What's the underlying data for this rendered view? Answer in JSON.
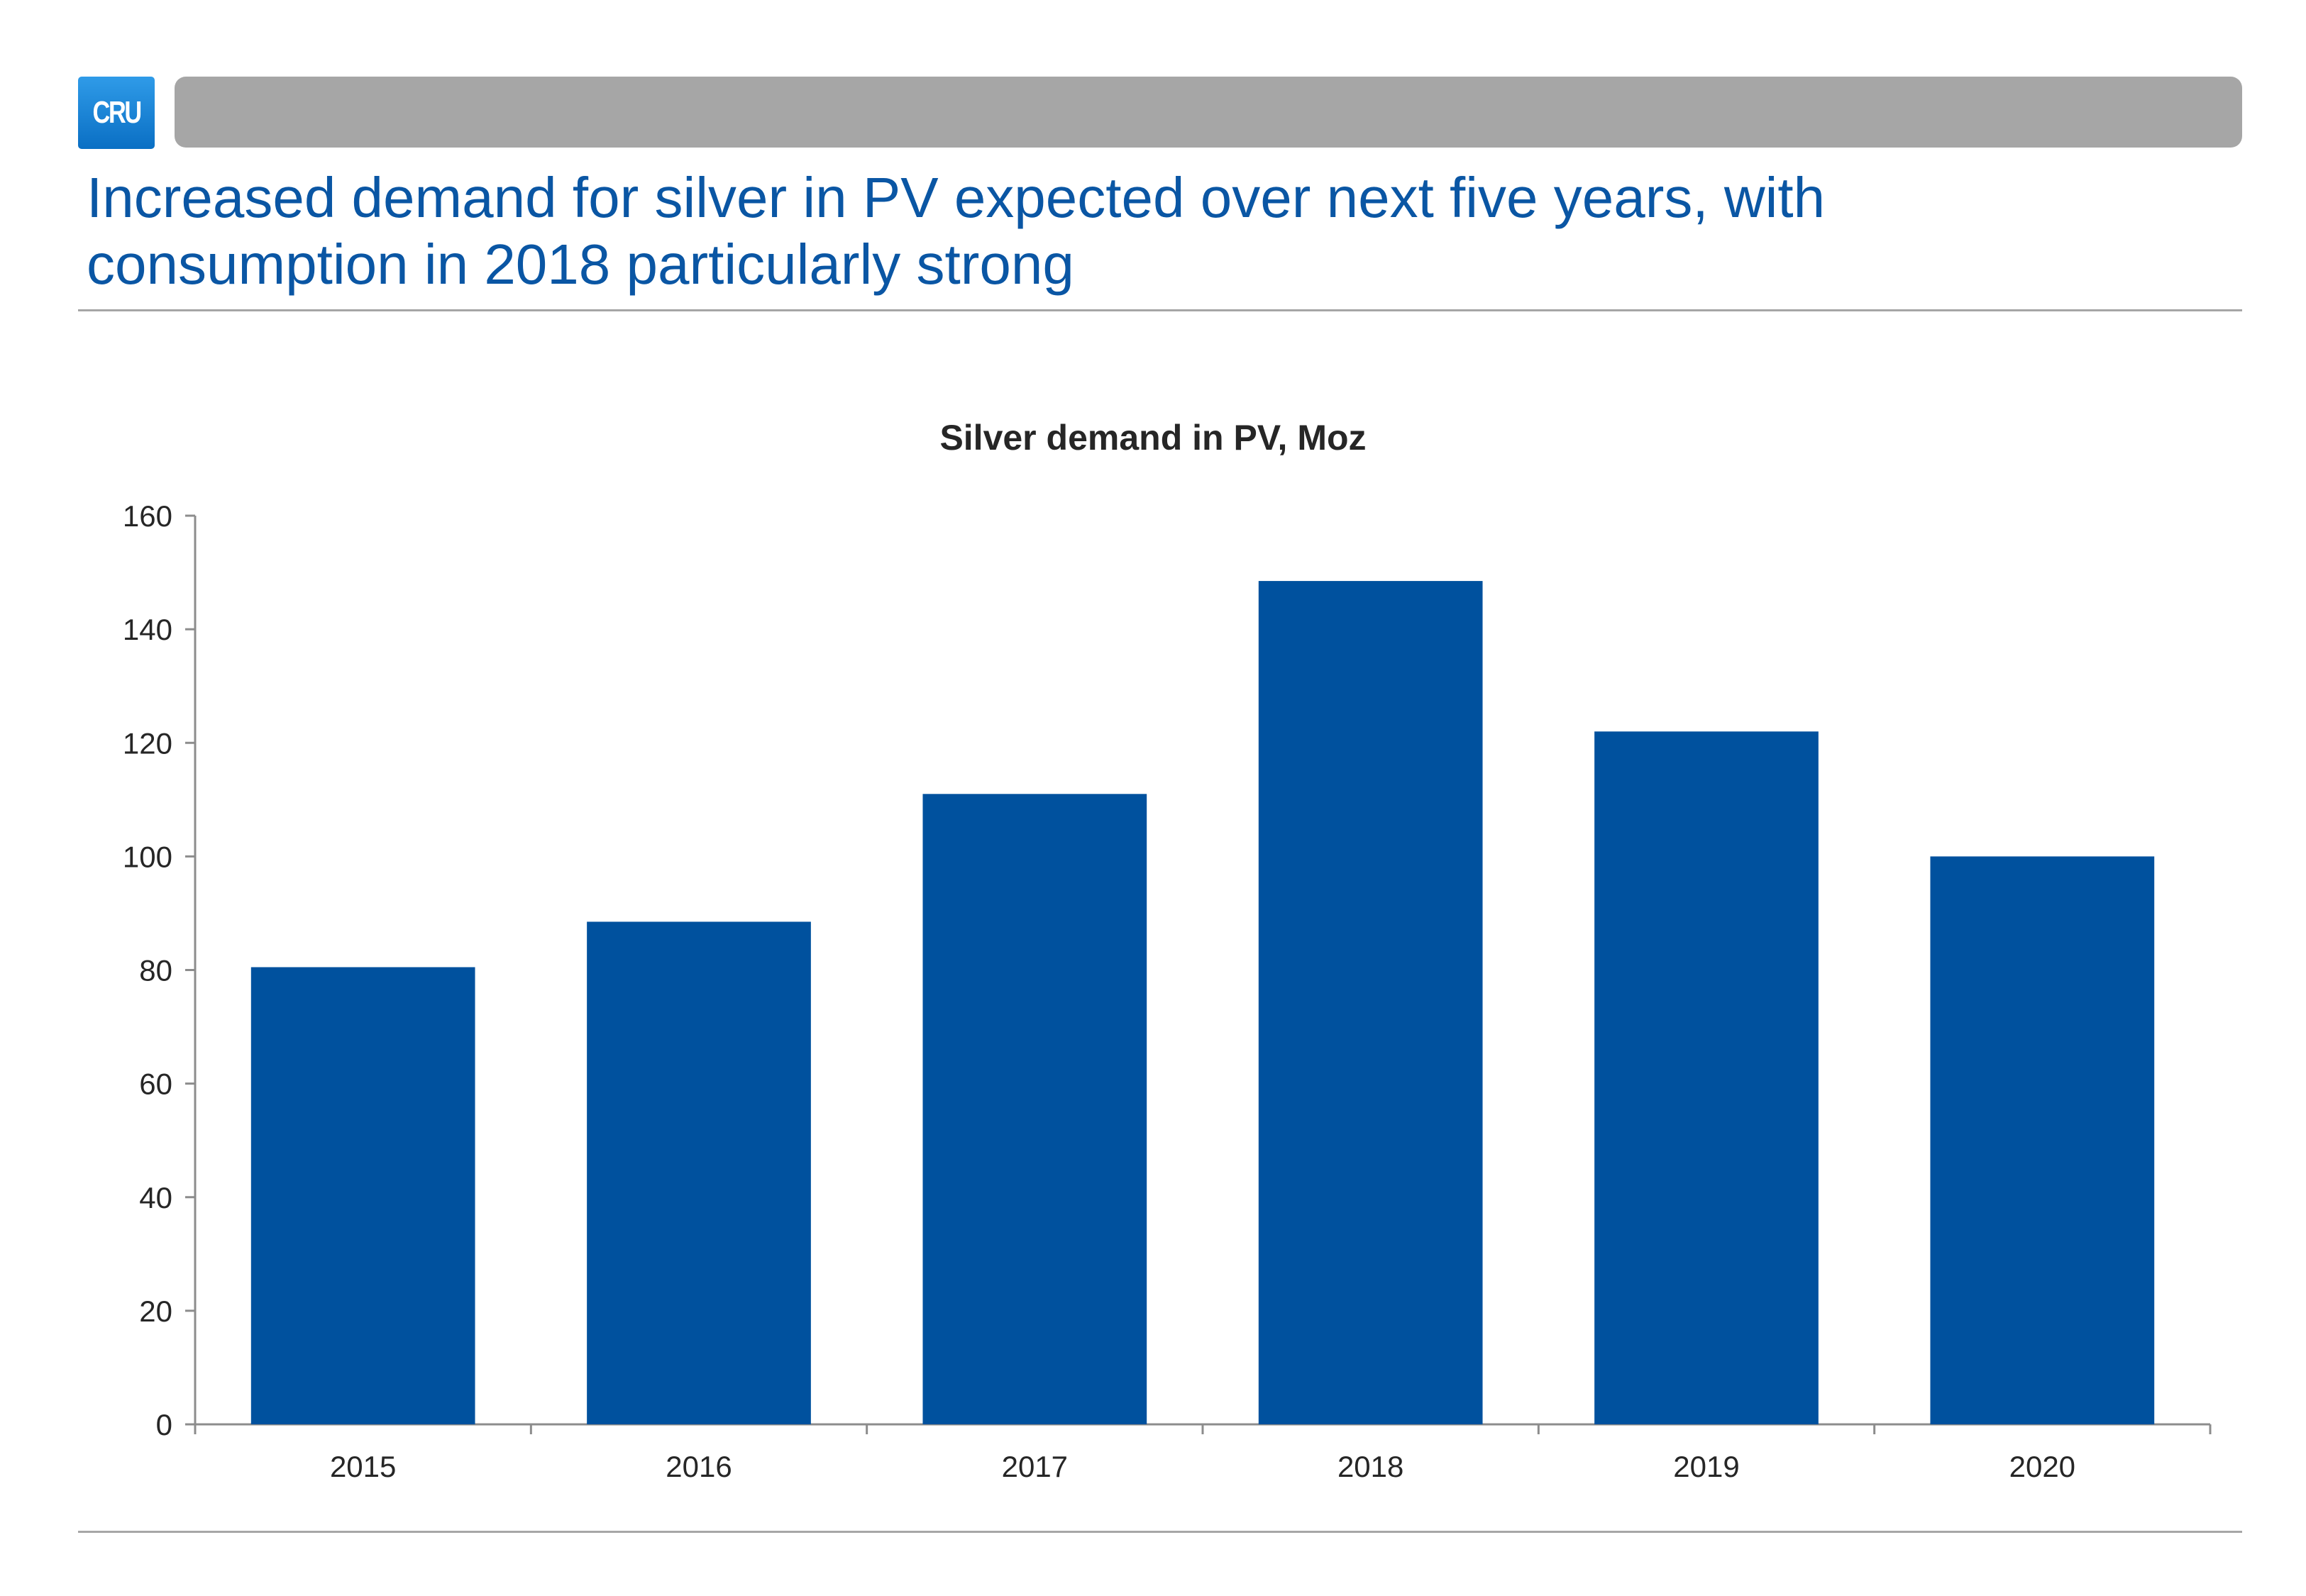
{
  "header": {
    "logo_text": "CRU"
  },
  "slide": {
    "title": "Increased demand for silver in PV expected over next five years, with consumption in 2018 particularly strong"
  },
  "colors": {
    "title": "#0a56a4",
    "bar": "#00519e",
    "header_bar": "#a6a6a6",
    "logo": "#1a86d8"
  },
  "chart_data": {
    "type": "bar",
    "title": "Silver demand in PV, Moz",
    "categories": [
      "2015",
      "2016",
      "2017",
      "2018",
      "2019",
      "2020"
    ],
    "series": [
      {
        "values": [
          80.5,
          88.5,
          111,
          148.5,
          122,
          100
        ]
      }
    ],
    "xlabel": "",
    "ylabel": "",
    "ylim": [
      0,
      160
    ],
    "yticks": [
      0,
      20,
      40,
      60,
      80,
      100,
      120,
      140,
      160
    ],
    "grid": false,
    "legend": "none"
  }
}
